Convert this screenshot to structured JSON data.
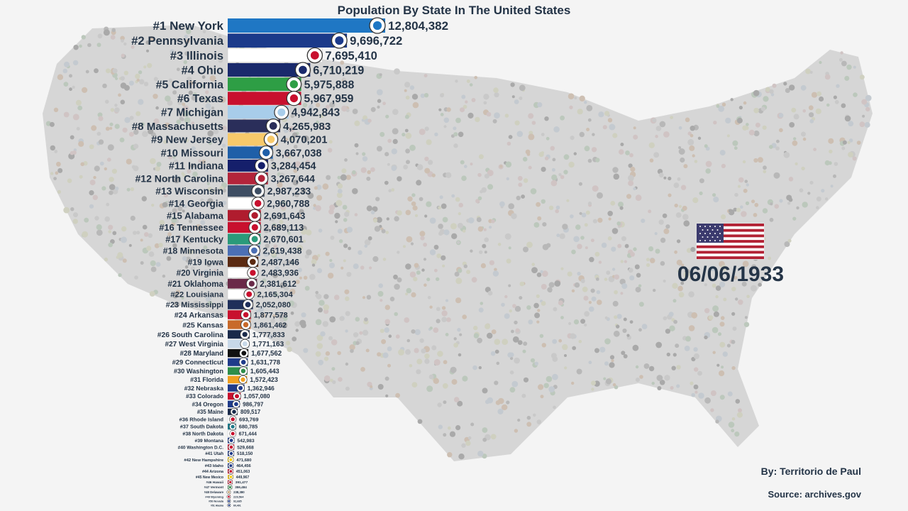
{
  "chart_data": {
    "type": "bar",
    "orientation": "horizontal",
    "title": "Population By State In The United States",
    "date": "06/06/1933",
    "xlim": [
      0,
      12804382
    ],
    "categories": [
      "#1 New York",
      "#2 Pennsylvania",
      "#3 Illinois",
      "#4 Ohio",
      "#5 California",
      "#6 Texas",
      "#7 Michigan",
      "#8 Massachusetts",
      "#9 New Jersey",
      "#10 Missouri",
      "#11 Indiana",
      "#12 North Carolina",
      "#13 Wisconsin",
      "#14 Georgia",
      "#15 Alabama",
      "#16 Tennessee",
      "#17 Kentucky",
      "#18 Minnesota",
      "#19 Iowa",
      "#20 Virginia",
      "#21 Oklahoma",
      "#22 Louisiana",
      "#23 Mississippi",
      "#24 Arkansas",
      "#25 Kansas",
      "#26 South Carolina",
      "#27 West Virginia",
      "#28 Maryland",
      "#29 Connecticut",
      "#30 Washington",
      "#31 Florida",
      "#32 Nebraska",
      "#33 Colorado",
      "#34 Oregon",
      "#35 Maine",
      "#36 Rhode Island",
      "#37 South Dakota",
      "#38 North Dakota",
      "#39 Montana",
      "#40 Washington D.C.",
      "#41 Utah",
      "#42 New Hampshire",
      "#43 Idaho",
      "#44 Arizona",
      "#45 New Mexico",
      "#46 Hawaii",
      "#47 Vermont",
      "#48 Delaware",
      "#49 Wyoming",
      "#50 Nevada",
      "#51 Alaska"
    ],
    "values": [
      12804382,
      9696722,
      7695410,
      6710219,
      5975888,
      5967959,
      4942843,
      4265983,
      4070201,
      3667038,
      3284454,
      3267644,
      2987233,
      2960788,
      2691643,
      2689113,
      2670601,
      2619438,
      2487146,
      2483936,
      2381612,
      2165304,
      2052080,
      1877578,
      1861462,
      1777833,
      1771163,
      1677562,
      1631778,
      1605443,
      1572423,
      1362946,
      1057080,
      986797,
      809517,
      693769,
      680785,
      671444,
      542983,
      529668,
      518150,
      471680,
      464456,
      451063,
      449967,
      391477,
      359484,
      238380,
      229564,
      92685,
      60401
    ],
    "value_labels": [
      "12,804,382",
      "9,696,722",
      "7,695,410",
      "6,710,219",
      "5,975,888",
      "5,967,959",
      "4,942,843",
      "4,265,983",
      "4,070,201",
      "3,667,038",
      "3,284,454",
      "3,267,644",
      "2,987,233",
      "2,960,788",
      "2,691,643",
      "2,689,113",
      "2,670,601",
      "2,619,438",
      "2,487,146",
      "2,483,936",
      "2,381,612",
      "2,165,304",
      "2,052,080",
      "1,877,578",
      "1,861,462",
      "1,777,833",
      "1,771,163",
      "1,677,562",
      "1,631,778",
      "1,605,443",
      "1,572,423",
      "1,362,946",
      "1,057,080",
      "986,797",
      "809,517",
      "693,769",
      "680,785",
      "671,444",
      "542,983",
      "529,668",
      "518,150",
      "471,680",
      "464,456",
      "451,063",
      "449,967",
      "391,477",
      "359,484",
      "238,380",
      "229,564",
      "92,685",
      "60,401"
    ],
    "colors": [
      "#1f77c4",
      "#1b3a8a",
      "#ffffff",
      "#1a2a6c",
      "#2e9e45",
      "#c8102e",
      "#a8cdea",
      "#2a2e5a",
      "#f7c96a",
      "#1f5fa8",
      "#151f6b",
      "#b3243a",
      "#3e4e63",
      "#ffffff",
      "#b01c2e",
      "#c8102e",
      "#2a9a7a",
      "#4b6fb5",
      "#5a2a12",
      "#ffffff",
      "#6a2a48",
      "#ffffff",
      "#1f2f5a",
      "#c8102e",
      "#c86a2a",
      "#1a2a4a",
      "#c8d8e8",
      "#111111",
      "#1f3b8a",
      "#2e8e4a",
      "#f0a020",
      "#1f3b8a",
      "#c8102e",
      "#1f3b8a",
      "#1a2a4a",
      "#ffffff",
      "#1f7a8a",
      "#ffffff",
      "#1f3b8a",
      "#c8102e",
      "#1f3b8a",
      "#ffcc00",
      "#1f3b8a",
      "#c8102e",
      "#ffcc00",
      "#c8102e",
      "#2e8e4a",
      "#c8a878",
      "#c8102e",
      "#1f3b8a",
      "#1f3b8a"
    ]
  },
  "credits": {
    "by": "By: Territorio de Paul",
    "source": "Source: archives.gov"
  }
}
